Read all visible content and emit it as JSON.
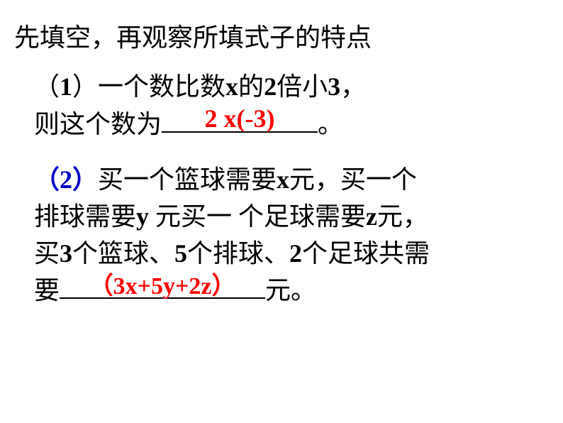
{
  "title": "先填空，再观察所填式子的特点",
  "q1": {
    "num_open": "（",
    "num": "1",
    "num_close": "）",
    "text_a": "一个数比数",
    "var_x": "x",
    "text_b": "的",
    "num2": "2",
    "text_c": "倍小",
    "num3": "3",
    "text_d": "，",
    "line2_a": "则这个数为",
    "answer": "2 x(-3)",
    "period": "。"
  },
  "q2": {
    "num_open": "（",
    "num": "2",
    "num_close": "）",
    "text_a": "买一个篮球需要",
    "var_x": "x",
    "text_b": "元，买一个",
    "line2_a": "排球需要",
    "var_y": "y ",
    "line2_b": "元买一 个足球需要",
    "var_z": "z",
    "line2_c": "元，",
    "line3_a": "买",
    "n3": "3",
    "line3_b": "个篮球、",
    "n5": "5",
    "line3_c": "个排球、",
    "n2": "2",
    "line3_d": "个足球共需",
    "line4_a": "要",
    "answer_open": "（",
    "answer": "3x+5y+2z",
    "answer_close": "）",
    "line4_b": "元。"
  }
}
